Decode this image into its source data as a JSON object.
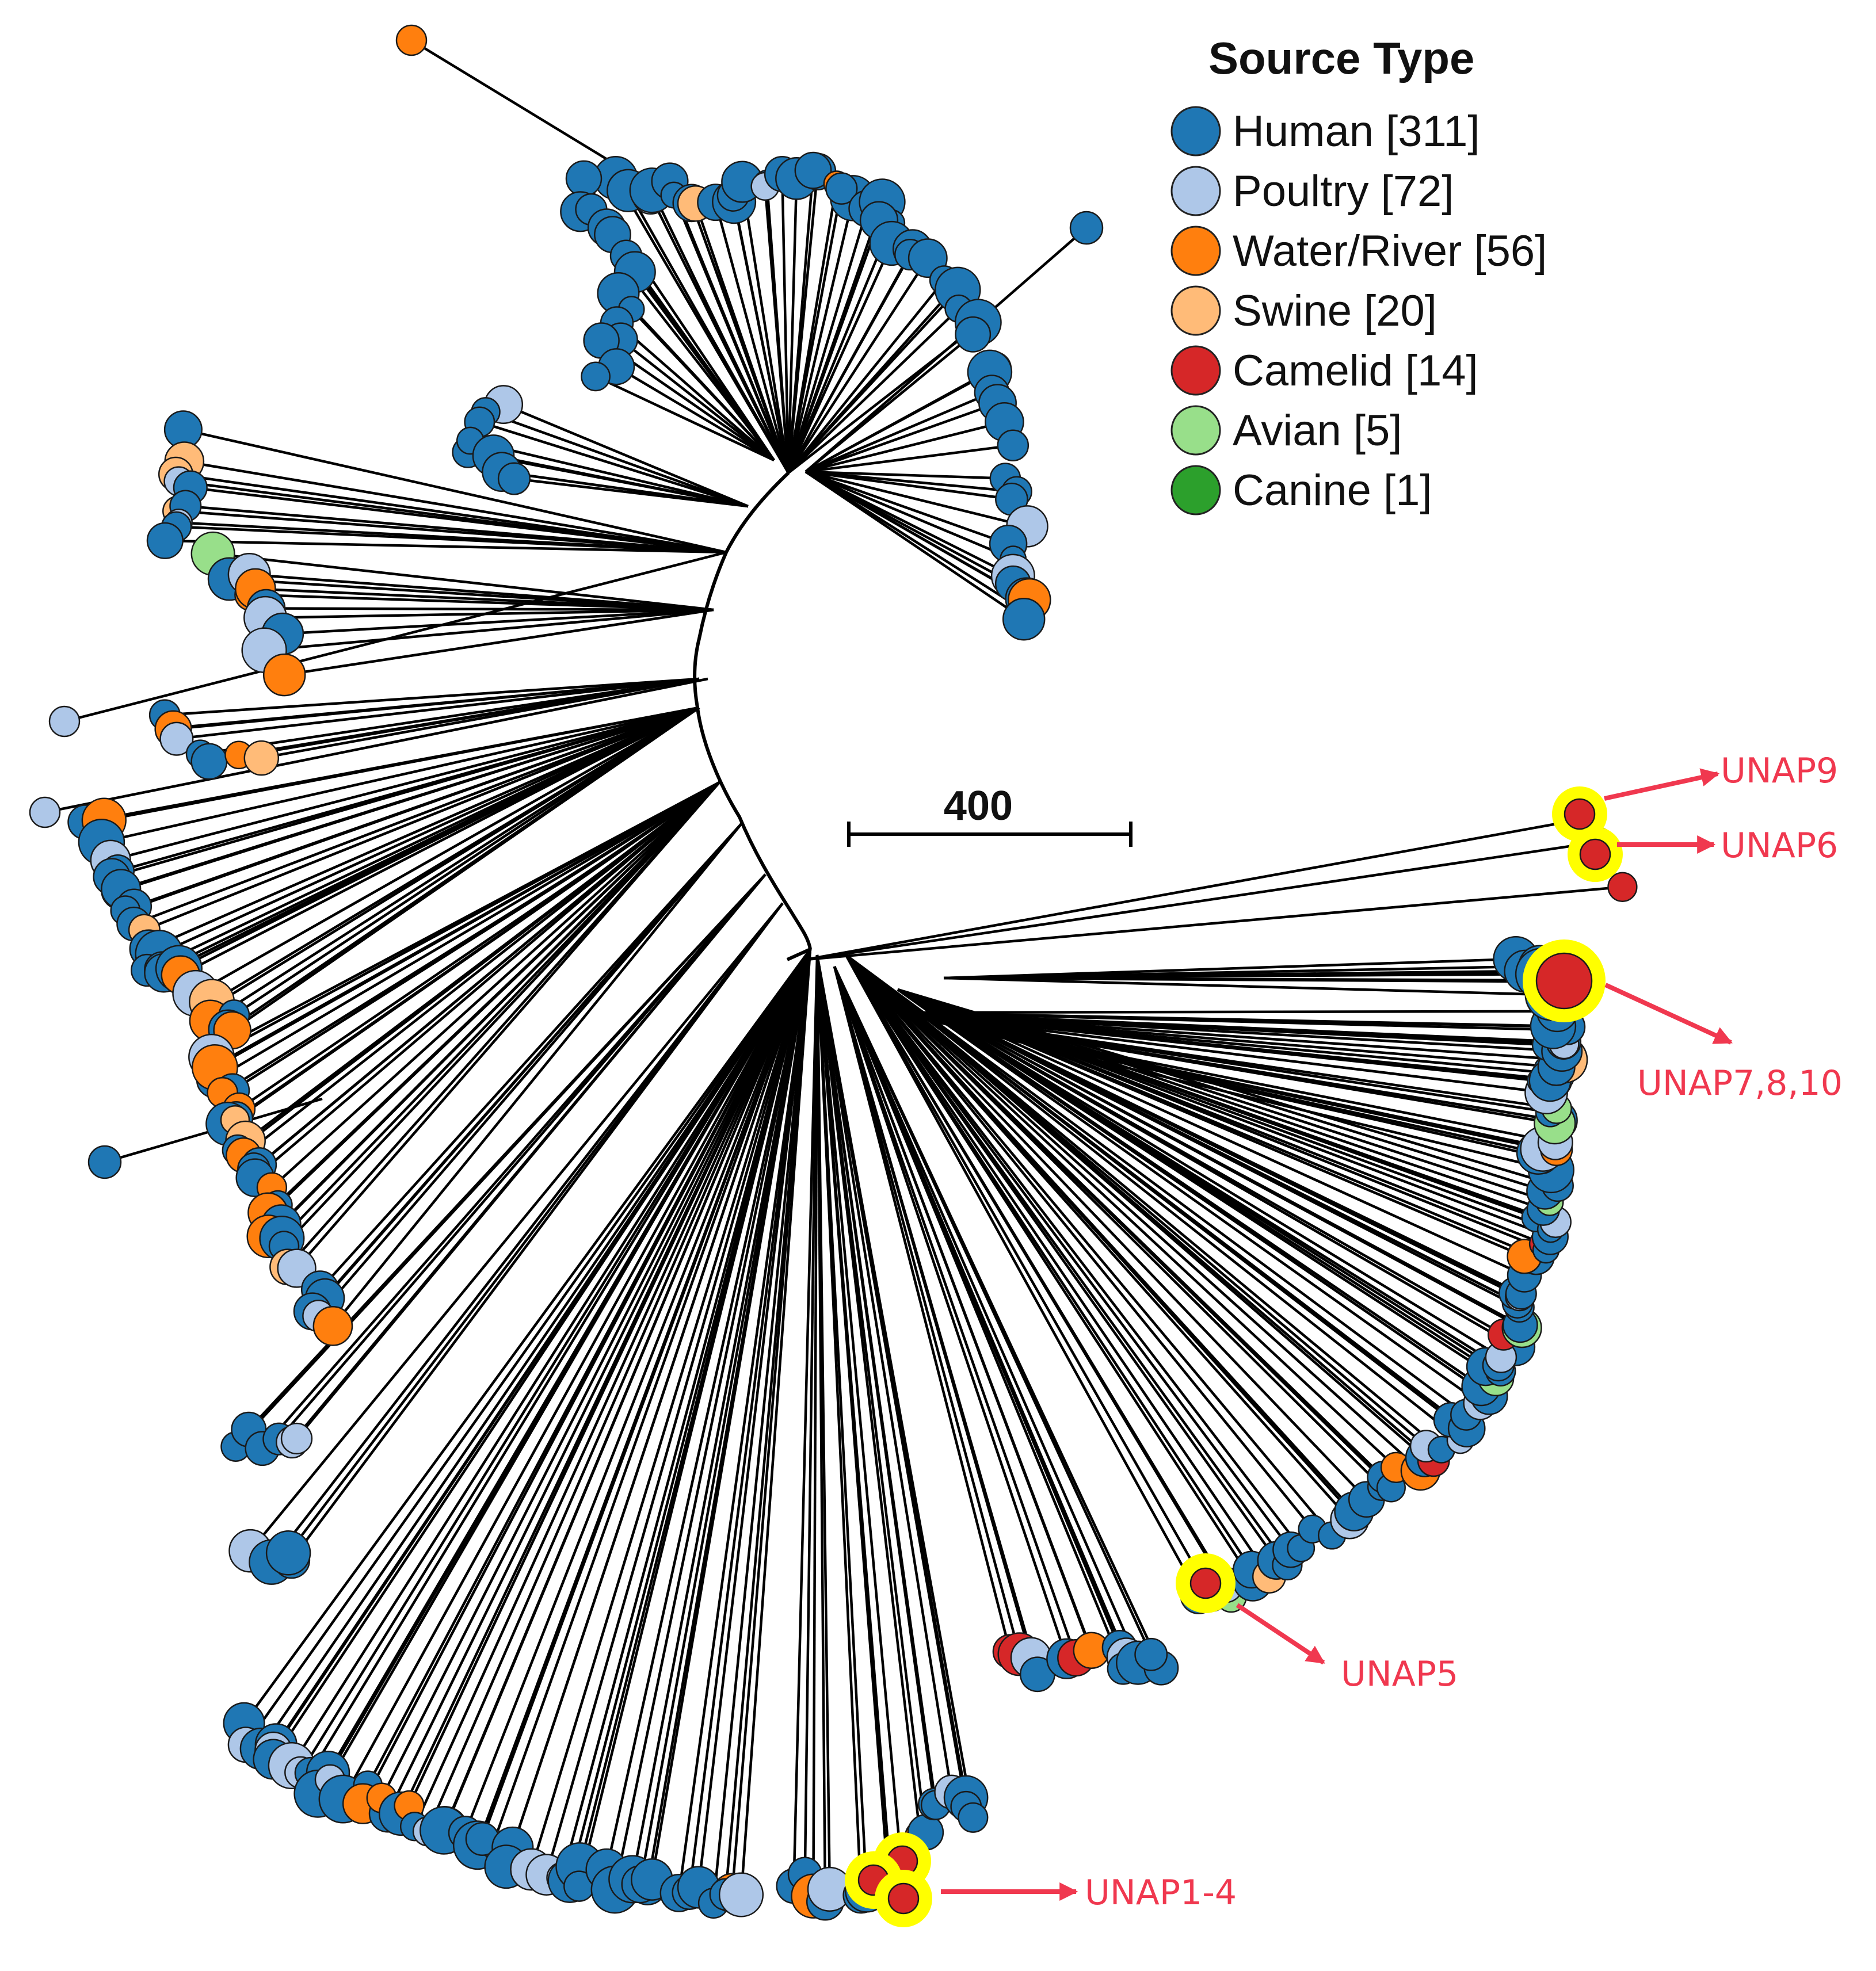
{
  "legend": {
    "title": "Source Type",
    "items": [
      {
        "label": "Human [311]",
        "color": "#1f77b4"
      },
      {
        "label": "Poultry [72]",
        "color": "#aec7e8"
      },
      {
        "label": "Water/River [56]",
        "color": "#ff7f0e"
      },
      {
        "label": "Swine [20]",
        "color": "#ffbb78"
      },
      {
        "label": "Camelid [14]",
        "color": "#d62728"
      },
      {
        "label": "Avian [5]",
        "color": "#98df8a"
      },
      {
        "label": "Canine [1]",
        "color": "#2ca02c"
      }
    ]
  },
  "scale_bar": {
    "label": "400"
  },
  "annotations": [
    {
      "label": "UNAP9"
    },
    {
      "label": "UNAP6"
    },
    {
      "label": "UNAP7,8,10"
    },
    {
      "label": "UNAP5"
    },
    {
      "label": "UNAP1-4"
    }
  ],
  "colors": {
    "branch": "#000000",
    "highlight": "#ffff00",
    "arrow": "#f0384f"
  }
}
